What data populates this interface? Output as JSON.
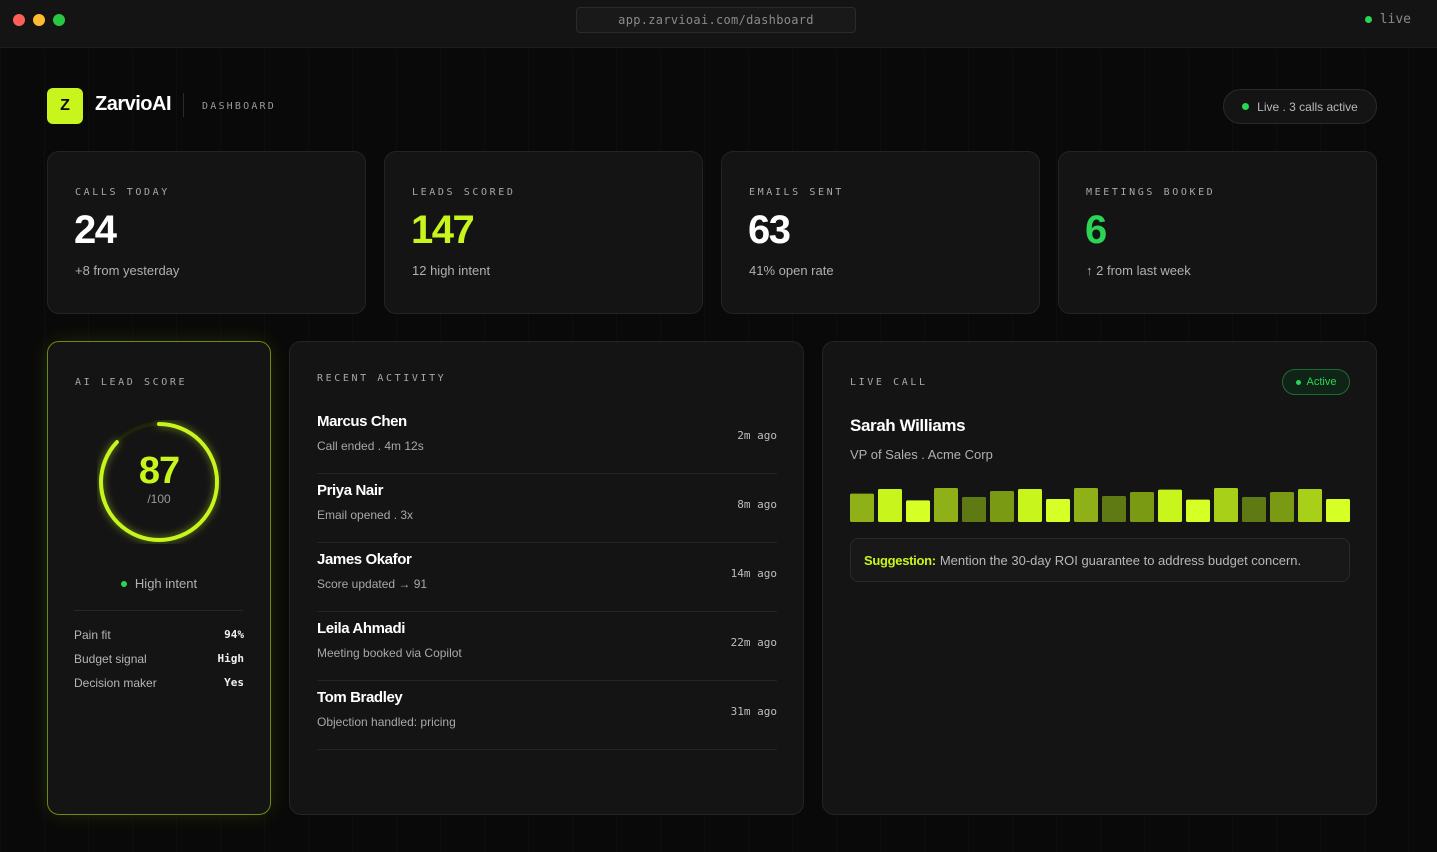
{
  "browser": {
    "url": "app.zarvioai.com/dashboard",
    "status": "live"
  },
  "header": {
    "logo_letter": "Z",
    "brand": "ZarvioAI",
    "section": "DASHBOARD",
    "status_text": "Live . 3 calls active"
  },
  "stats": [
    {
      "label": "CALLS TODAY",
      "value": "24",
      "sub": "+8 from yesterday",
      "color": "#ffffff"
    },
    {
      "label": "LEADS SCORED",
      "value": "147",
      "sub": "12 high intent",
      "color": "#c8f51c"
    },
    {
      "label": "EMAILS SENT",
      "value": "63",
      "sub": "41% open rate",
      "color": "#ffffff"
    },
    {
      "label": "MEETINGS BOOKED",
      "value": "6",
      "sub": "2 from last week",
      "color": "#2bd455"
    }
  ],
  "lead_score": {
    "label": "AI LEAD SCORE",
    "score": "87",
    "max": "/100",
    "score_fraction": 0.87,
    "intent": "High intent",
    "factors": [
      {
        "key": "Pain fit",
        "value": "94%"
      },
      {
        "key": "Budget signal",
        "value": "High"
      },
      {
        "key": "Decision maker",
        "value": "Yes"
      }
    ]
  },
  "activity": {
    "label": "RECENT ACTIVITY",
    "items": [
      {
        "name": "Marcus Chen",
        "desc": "Call ended . 4m 12s",
        "time": "2m ago"
      },
      {
        "name": "Priya Nair",
        "desc": "Email opened . 3x",
        "time": "8m ago"
      },
      {
        "name": "James Okafor",
        "desc": "Score updated → 91",
        "time": "14m ago"
      },
      {
        "name": "Leila Ahmadi",
        "desc": "Meeting booked via Copilot",
        "time": "22m ago"
      },
      {
        "name": "Tom Bradley",
        "desc": "Objection handled: pricing",
        "time": "31m ago"
      }
    ]
  },
  "live_call": {
    "label": "LIVE CALL",
    "status": "Active",
    "caller": "Sarah Williams",
    "role": "VP of Sales . Acme Corp",
    "waveform": [
      0.72,
      0.95,
      0.38,
      1.0,
      0.55,
      0.85,
      0.95,
      0.45,
      1.0,
      0.6,
      0.8,
      0.92,
      0.42,
      1.0,
      0.55,
      0.8,
      0.95,
      0.45
    ],
    "waveform_colors": [
      "#8fb017",
      "#c8f51c",
      "#d6ff26",
      "#8fb017",
      "#5f7a12",
      "#7a9a14",
      "#c8f51c",
      "#d6ff26",
      "#8fb017",
      "#5f7a12",
      "#7a9a14",
      "#c8f51c",
      "#d6ff26",
      "#a8d018",
      "#5f7a12",
      "#7a9a14",
      "#a8d018",
      "#d6ff26"
    ],
    "suggestion_label": "Suggestion:",
    "suggestion_text": "Mention the 30-day ROI guarantee to address budget concern."
  },
  "colors": {
    "accent": "#c8f51c",
    "success": "#2bd455",
    "background": "#090909",
    "card": "#141414"
  }
}
